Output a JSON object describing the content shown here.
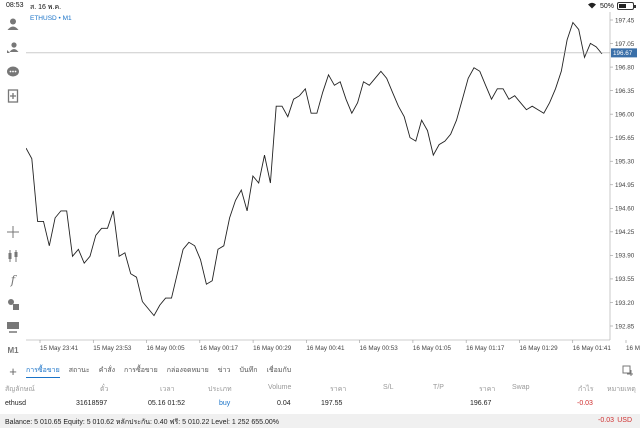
{
  "statusbar": {
    "time": "08:53",
    "date": "ส. 16 พ.ค.",
    "battery": "50%",
    "battery_level": 0.5
  },
  "chart": {
    "symbol": "ETHUSD",
    "timeframe": "M1",
    "current_price_label": "196.67",
    "line_color": "#222222",
    "price_label_bg": "#3a6fa8"
  },
  "toolbar": {
    "icons": [
      "person-icon",
      "person-swap-icon",
      "chat-icon",
      "add-document-icon",
      "crosshair-icon",
      "candlestick-icon",
      "function-icon",
      "objects-icon",
      "templates-icon",
      "timeframe-m1"
    ],
    "timeframe_label": "M1"
  },
  "chart_data": {
    "type": "line",
    "ylim": [
      192.6,
      197.3
    ],
    "yticks": [
      "197.45",
      "197.05",
      "196.80",
      "196.35",
      "196.00",
      "195.65",
      "195.30",
      "194.95",
      "194.60",
      "194.25",
      "193.90",
      "193.55",
      "193.20",
      "192.85"
    ],
    "xticks": [
      "15 May 23:41",
      "15 May 23:53",
      "16 May 00:05",
      "16 May 00:17",
      "16 May 00:29",
      "16 May 00:41",
      "16 May 00:53",
      "16 May 01:05",
      "16 May 01:17",
      "16 May 01:29",
      "16 May 01:41",
      "16 May 01:5"
    ],
    "values": [
      195.35,
      195.2,
      194.3,
      194.3,
      193.95,
      194.35,
      194.45,
      194.45,
      193.8,
      193.9,
      193.7,
      193.8,
      194.1,
      194.2,
      194.2,
      194.45,
      193.8,
      193.85,
      193.55,
      193.5,
      193.15,
      193.05,
      192.95,
      193.1,
      193.2,
      193.2,
      193.55,
      193.9,
      194.0,
      193.95,
      193.75,
      193.4,
      193.45,
      193.9,
      193.95,
      194.35,
      194.6,
      194.75,
      194.45,
      194.95,
      194.85,
      195.25,
      194.85,
      195.95,
      195.95,
      195.8,
      196.05,
      196.1,
      196.2,
      195.85,
      195.85,
      196.15,
      196.4,
      196.25,
      196.3,
      196.05,
      195.85,
      196.0,
      196.3,
      196.25,
      196.35,
      196.45,
      196.35,
      196.15,
      195.95,
      195.8,
      195.5,
      195.45,
      195.75,
      195.6,
      195.25,
      195.4,
      195.45,
      195.55,
      195.75,
      196.05,
      196.35,
      196.5,
      196.45,
      196.25,
      196.05,
      196.2,
      196.2,
      196.05,
      196.1,
      196.0,
      195.9,
      195.95,
      195.9,
      195.85,
      196.0,
      196.2,
      196.45,
      196.9,
      197.15,
      197.05,
      196.65,
      196.85,
      196.8,
      196.7
    ]
  },
  "tabs": [
    "การซื้อขาย",
    "สถานะ",
    "คำสั่ง",
    "การซื้อขาย",
    "กล่องจดหมาย",
    "ข่าว",
    "บันทึก",
    "เชื่อมกับ"
  ],
  "active_tab": 0,
  "table": {
    "headers": [
      "สัญลักษณ์",
      "ตั๋ว",
      "เวลา",
      "ประเภท",
      "Volume",
      "ราคา",
      "S/L",
      "T/P",
      "ราคา",
      "Swap",
      "กำไร",
      "หมายเหตุ"
    ],
    "rows": [
      {
        "symbol": "ethusd",
        "ticket": "31618597",
        "time": "05.16 01:52",
        "type": "buy",
        "volume": "0.04",
        "price_open": "197.55",
        "sl": "",
        "tp": "",
        "price_now": "196.67",
        "swap": "",
        "profit": "-0.03",
        "note": ""
      }
    ]
  },
  "balance": {
    "text": "Balance: 5 010.65 Equity: 5 010.62 หลักประกัน: 0.40 ฟรี: 5 010.22 Level: 1 252 655.00%",
    "profit": "-0.03",
    "currency": "USD"
  }
}
